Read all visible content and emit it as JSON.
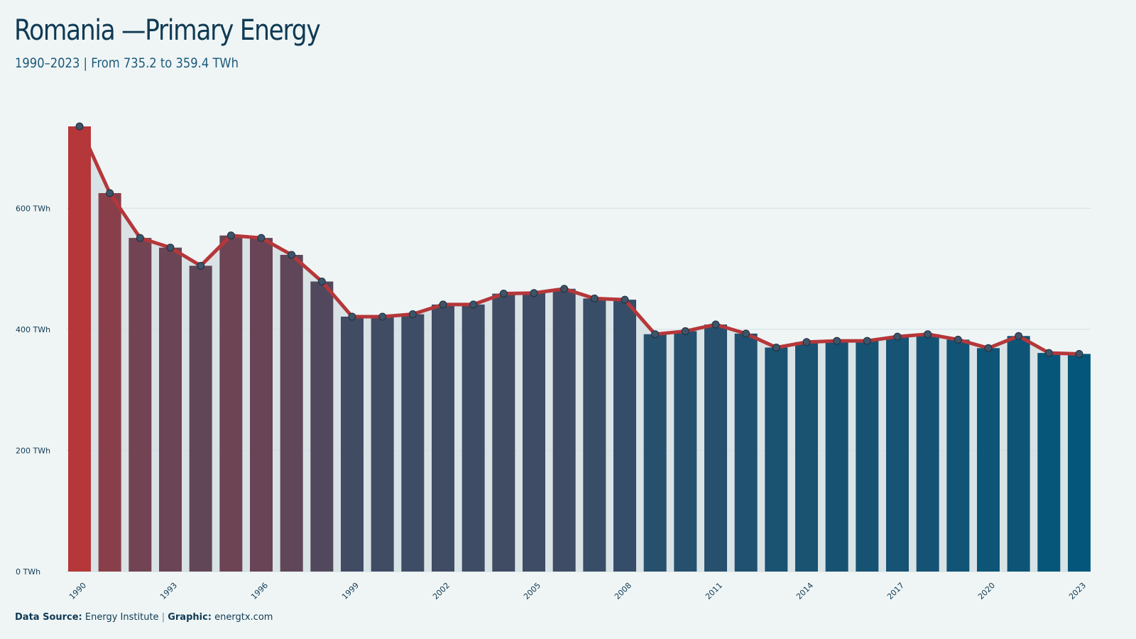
{
  "header": {
    "title": "Romania —Primary Energy",
    "subtitle": "1990–2023 | From 735.2 to 359.4 TWh"
  },
  "footer": {
    "source_label": "Data Source:",
    "source_value": "Energy Institute",
    "separator": "|",
    "graphic_label": "Graphic:",
    "graphic_value": "energtx.com"
  },
  "colors": {
    "background": "#eff5f5",
    "line": "#b5373a",
    "bar_high": "#b5373a",
    "bar_low": "#04567a",
    "marker_fill": "#3d5469",
    "text": "#0f3a54",
    "grid": "#d3dee3"
  },
  "chart_data": {
    "type": "bar",
    "x": [
      1990,
      1991,
      1992,
      1993,
      1994,
      1995,
      1996,
      1997,
      1998,
      1999,
      2000,
      2001,
      2002,
      2003,
      2004,
      2005,
      2006,
      2007,
      2008,
      2009,
      2010,
      2011,
      2012,
      2013,
      2014,
      2015,
      2016,
      2017,
      2018,
      2019,
      2020,
      2021,
      2022,
      2023
    ],
    "values": [
      735.2,
      625,
      551,
      535,
      505,
      555,
      551,
      523,
      479,
      421,
      421,
      425,
      441,
      441,
      459,
      460,
      467,
      451,
      449,
      392,
      397,
      408,
      393,
      370,
      379,
      381,
      381,
      388,
      392,
      383,
      369,
      389,
      361,
      359.4
    ],
    "series": [
      {
        "name": "",
        "type": "bar",
        "values": [
          735.2,
          625,
          551,
          535,
          505,
          555,
          551,
          523,
          479,
          421,
          421,
          425,
          441,
          441,
          459,
          460,
          467,
          451,
          449,
          392,
          397,
          408,
          393,
          370,
          379,
          381,
          381,
          388,
          392,
          383,
          369,
          389,
          361,
          359.4
        ]
      },
      {
        "name": "",
        "type": "line",
        "values": [
          735.2,
          625,
          551,
          535,
          505,
          555,
          551,
          523,
          479,
          421,
          421,
          425,
          441,
          441,
          459,
          460,
          467,
          451,
          449,
          392,
          397,
          408,
          393,
          370,
          379,
          381,
          381,
          388,
          392,
          383,
          369,
          389,
          361,
          359.4
        ]
      }
    ],
    "x_tick_labels": [
      "1990",
      "1993",
      "1996",
      "1999",
      "2002",
      "2005",
      "2008",
      "2011",
      "2014",
      "2017",
      "2020",
      "2023"
    ],
    "y_ticks": [
      0,
      200,
      400,
      600
    ],
    "y_tick_labels": [
      "0 TWh",
      "200 TWh",
      "400 TWh",
      "600 TWh"
    ],
    "ylim": [
      0,
      735.2
    ],
    "grid": true,
    "legend": "none"
  }
}
